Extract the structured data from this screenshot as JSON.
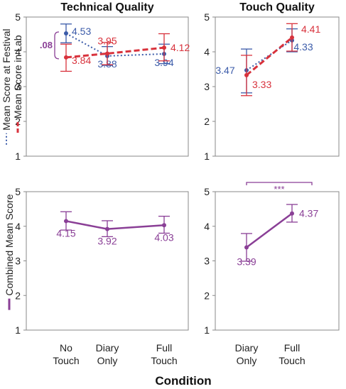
{
  "figure": {
    "x_axis_title": "Condition"
  },
  "colors": {
    "festival": "#3b5ba9",
    "lab": "#d8323c",
    "combined": "#8a3f96",
    "frame": "#888888"
  },
  "legends": {
    "top": [
      {
        "label": "Mean Score at Festival",
        "color": "#3b5ba9",
        "style": "dotted"
      },
      {
        "label": "Mean Score in Lab",
        "color": "#d8323c",
        "style": "dashed"
      }
    ],
    "bottom": [
      {
        "label": "Combined Mean Score",
        "color": "#8a3f96",
        "style": "solid"
      }
    ]
  },
  "chart_data": [
    {
      "id": "technical-top",
      "type": "line",
      "title": "Technical Quality",
      "categories": [
        "No\nTouch",
        "Diary\nOnly",
        "Full\nTouch"
      ],
      "ylim": [
        1,
        5
      ],
      "yticks": [
        1,
        2,
        3,
        4,
        5
      ],
      "series": [
        {
          "key": "festival",
          "name": "Mean Score at Festival",
          "style": "dotted",
          "values": [
            4.53,
            3.88,
            3.94
          ],
          "err_low": [
            4.26,
            3.61,
            3.66
          ],
          "err_high": [
            4.8,
            4.15,
            4.22
          ],
          "labels": [
            "4.53",
            "3.88",
            "3.94"
          ]
        },
        {
          "key": "lab",
          "name": "Mean Score in Lab",
          "style": "dashed",
          "values": [
            3.84,
            3.95,
            4.12
          ],
          "err_low": [
            3.44,
            3.63,
            3.74
          ],
          "err_high": [
            4.22,
            4.27,
            4.52
          ],
          "labels": [
            "3.84",
            "3.95",
            "4.12"
          ]
        }
      ],
      "annotation": {
        "text": ".08"
      }
    },
    {
      "id": "touch-top",
      "type": "line",
      "title": "Touch Quality",
      "categories": [
        "Diary\nOnly",
        "Full\nTouch"
      ],
      "ylim": [
        1,
        5
      ],
      "yticks": [
        1,
        2,
        3,
        4,
        5
      ],
      "series": [
        {
          "key": "festival",
          "name": "Mean Score at Festival",
          "style": "dotted",
          "values": [
            3.47,
            4.33
          ],
          "err_low": [
            2.82,
            4.0
          ],
          "err_high": [
            4.08,
            4.66
          ],
          "labels": [
            "3.47",
            "4.33"
          ]
        },
        {
          "key": "lab",
          "name": "Mean Score in Lab",
          "style": "dashed",
          "values": [
            3.33,
            4.41
          ],
          "err_low": [
            2.74,
            4.02
          ],
          "err_high": [
            3.9,
            4.81
          ],
          "labels": [
            "3.33",
            "4.41"
          ]
        }
      ]
    },
    {
      "id": "technical-bottom",
      "type": "line",
      "title": "",
      "categories": [
        "No\nTouch",
        "Diary\nOnly",
        "Full\nTouch"
      ],
      "ylim": [
        1,
        5
      ],
      "yticks": [
        1,
        2,
        3,
        4,
        5
      ],
      "series": [
        {
          "key": "combined",
          "name": "Combined Mean Score",
          "style": "solid",
          "values": [
            4.15,
            3.92,
            4.03
          ],
          "err_low": [
            3.89,
            3.7,
            3.8
          ],
          "err_high": [
            4.42,
            4.16,
            4.29
          ],
          "labels": [
            "4.15",
            "3.92",
            "4.03"
          ]
        }
      ]
    },
    {
      "id": "touch-bottom",
      "type": "line",
      "title": "",
      "categories": [
        "Diary\nOnly",
        "Full\nTouch"
      ],
      "ylim": [
        1,
        5
      ],
      "yticks": [
        1,
        2,
        3,
        4,
        5
      ],
      "series": [
        {
          "key": "combined",
          "name": "Combined Mean Score",
          "style": "solid",
          "values": [
            3.39,
            4.37
          ],
          "err_low": [
            2.99,
            4.12
          ],
          "err_high": [
            3.79,
            4.63
          ],
          "labels": [
            "3.39",
            "4.37"
          ]
        }
      ],
      "annotation": {
        "text": "***"
      }
    }
  ]
}
